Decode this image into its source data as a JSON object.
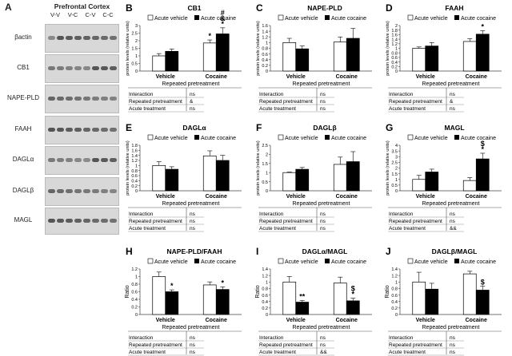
{
  "figure": {
    "panel_a_letter": "A",
    "blot_title": "Prefrontal Cortex",
    "lanes": [
      "V-V",
      "V-C",
      "C-V",
      "C-C"
    ],
    "proteins": [
      "βactin",
      "CB1",
      "NAPE-PLD",
      "FAAH",
      "DAGLα",
      "DAGLβ",
      "MAGL"
    ]
  },
  "chart_data": [
    {
      "letter": "B",
      "type": "bar",
      "title": "CB1",
      "ylabel": "protein levels (relative units)",
      "yticks": [
        "0",
        "0.5",
        "1",
        "1.5",
        "2",
        "2.5",
        "3"
      ],
      "ylim": [
        0,
        3
      ],
      "categories": [
        "Vehicle",
        "Cocaine"
      ],
      "xlabel": "Repeated pretreatment",
      "legend": [
        "Acute vehicle",
        "Acute cocaine"
      ],
      "series": [
        {
          "name": "Acute vehicle",
          "color": "#ffffff",
          "values": [
            1.0,
            1.85
          ],
          "errors": [
            0.15,
            0.2
          ],
          "marks": [
            "",
            "*"
          ]
        },
        {
          "name": "Acute cocaine",
          "color": "#000000",
          "values": [
            1.3,
            2.45
          ],
          "errors": [
            0.15,
            0.4
          ],
          "marks": [
            "",
            "#\n&\n*"
          ]
        }
      ],
      "stats": [
        {
          "label": "Interaction",
          "value": "ns"
        },
        {
          "label": "Repeated pretreatment",
          "value": "&"
        },
        {
          "label": "Acute treatment",
          "value": "ns"
        }
      ]
    },
    {
      "letter": "C",
      "type": "bar",
      "title": "NAPE-PLD",
      "ylabel": "protein levels (relative units)",
      "yticks": [
        "0",
        "0.2",
        "0.4",
        "0.6",
        "0.8",
        "1",
        "1.2",
        "1.4",
        "1.6"
      ],
      "ylim": [
        0,
        1.6
      ],
      "categories": [
        "Vehicle",
        "Cocaine"
      ],
      "xlabel": "Repeated pretreatment",
      "legend": [
        "Acute vehicle",
        "Acute cocaine"
      ],
      "series": [
        {
          "name": "Acute vehicle",
          "color": "#ffffff",
          "values": [
            1.0,
            1.02
          ],
          "errors": [
            0.15,
            0.18
          ],
          "marks": [
            "",
            ""
          ]
        },
        {
          "name": "Acute cocaine",
          "color": "#000000",
          "values": [
            0.78,
            1.15
          ],
          "errors": [
            0.1,
            0.35
          ],
          "marks": [
            "",
            ""
          ]
        }
      ],
      "stats": [
        {
          "label": "Interaction",
          "value": "ns"
        },
        {
          "label": "Repeated pretreatment",
          "value": "ns"
        },
        {
          "label": "Acute treatment",
          "value": "ns"
        }
      ]
    },
    {
      "letter": "D",
      "type": "bar",
      "title": "FAAH",
      "ylabel": "protein levels (relative units)",
      "yticks": [
        "0",
        "0.2",
        "0.4",
        "0.6",
        "0.8",
        "1",
        "1.2",
        "1.4",
        "1.6",
        "1.8",
        "2"
      ],
      "ylim": [
        0,
        2
      ],
      "categories": [
        "Vehicle",
        "Cocaine"
      ],
      "xlabel": "Repeated pretreatment",
      "legend": [
        "Acute vehicle",
        "Acute cocaine"
      ],
      "series": [
        {
          "name": "Acute vehicle",
          "color": "#ffffff",
          "values": [
            1.0,
            1.3
          ],
          "errors": [
            0.06,
            0.12
          ],
          "marks": [
            "",
            ""
          ]
        },
        {
          "name": "Acute cocaine",
          "color": "#000000",
          "values": [
            1.1,
            1.62
          ],
          "errors": [
            0.15,
            0.15
          ],
          "marks": [
            "",
            "*"
          ]
        }
      ],
      "stats": [
        {
          "label": "Interaction",
          "value": "ns"
        },
        {
          "label": "Repeated pretreatment",
          "value": "&"
        },
        {
          "label": "Acute treatment",
          "value": "ns"
        }
      ]
    },
    {
      "letter": "E",
      "type": "bar",
      "title": "DAGLα",
      "ylabel": "protein levels (relative units)",
      "yticks": [
        "0",
        "0.2",
        "0.4",
        "0.6",
        "0.8",
        "1",
        "1.2",
        "1.4",
        "1.6",
        "1.8"
      ],
      "ylim": [
        0,
        1.8
      ],
      "categories": [
        "Vehicle",
        "Cocaine"
      ],
      "xlabel": "Repeated pretreatment",
      "legend": [
        "Acute vehicle",
        "Acute cocaine"
      ],
      "series": [
        {
          "name": "Acute vehicle",
          "color": "#ffffff",
          "values": [
            1.0,
            1.38
          ],
          "errors": [
            0.15,
            0.2
          ],
          "marks": [
            "",
            ""
          ]
        },
        {
          "name": "Acute cocaine",
          "color": "#000000",
          "values": [
            0.85,
            1.2
          ],
          "errors": [
            0.1,
            0.2
          ],
          "marks": [
            "",
            ""
          ]
        }
      ],
      "stats": [
        {
          "label": "Interaction",
          "value": "ns"
        },
        {
          "label": "Repeated pretreatment",
          "value": "ns"
        },
        {
          "label": "Acute treatment",
          "value": "ns"
        }
      ]
    },
    {
      "letter": "F",
      "type": "bar",
      "title": "DAGLβ",
      "ylabel": "protein levels (relative units)",
      "yticks": [
        "0",
        "0.5",
        "1",
        "1.5",
        "2",
        "2.5"
      ],
      "ylim": [
        0,
        2.5
      ],
      "categories": [
        "Vehicle",
        "Cocaine"
      ],
      "xlabel": "Repeated pretreatment",
      "legend": [
        "Acute vehicle",
        "Acute cocaine"
      ],
      "series": [
        {
          "name": "Acute vehicle",
          "color": "#ffffff",
          "values": [
            1.0,
            1.45
          ],
          "errors": [
            0.03,
            0.4
          ],
          "marks": [
            "",
            ""
          ]
        },
        {
          "name": "Acute cocaine",
          "color": "#000000",
          "values": [
            1.18,
            1.6
          ],
          "errors": [
            0.1,
            0.55
          ],
          "marks": [
            "",
            ""
          ]
        }
      ],
      "stats": [
        {
          "label": "Interaction",
          "value": "ns"
        },
        {
          "label": "Repeated pretreatment",
          "value": "ns"
        },
        {
          "label": "Acute treatment",
          "value": "ns"
        }
      ]
    },
    {
      "letter": "G",
      "type": "bar",
      "title": "MAGL",
      "ylabel": "protein levels (relative units)",
      "yticks": [
        "0",
        "0.5",
        "1",
        "1.5",
        "2",
        "2.5",
        "3",
        "3.5",
        "4"
      ],
      "ylim": [
        0,
        4
      ],
      "categories": [
        "Vehicle",
        "Cocaine"
      ],
      "xlabel": "Repeated pretreatment",
      "legend": [
        "Acute vehicle",
        "Acute cocaine"
      ],
      "series": [
        {
          "name": "Acute vehicle",
          "color": "#ffffff",
          "values": [
            1.0,
            0.9
          ],
          "errors": [
            0.35,
            0.25
          ],
          "marks": [
            "",
            ""
          ]
        },
        {
          "name": "Acute cocaine",
          "color": "#000000",
          "values": [
            1.65,
            2.8
          ],
          "errors": [
            0.25,
            0.5
          ],
          "marks": [
            "",
            "$\n*"
          ]
        }
      ],
      "stats": [
        {
          "label": "Interaction",
          "value": "ns"
        },
        {
          "label": "Repeated pretreatment",
          "value": "ns"
        },
        {
          "label": "Acute treatment",
          "value": "&&"
        }
      ]
    },
    {
      "letter": "H",
      "type": "bar",
      "title": "NAPE-PLD/FAAH",
      "ylabel": "Ratio",
      "yticks": [
        "0",
        "0.2",
        "0.4",
        "0.6",
        "0.8",
        "1",
        "1.2"
      ],
      "ylim": [
        0,
        1.2
      ],
      "categories": [
        "Vehicle",
        "Cocaine"
      ],
      "xlabel": "Repeated pretreatment",
      "legend": [
        "Acute vehicle",
        "Acute cocaine"
      ],
      "series": [
        {
          "name": "Acute vehicle",
          "color": "#ffffff",
          "values": [
            1.0,
            0.78
          ],
          "errors": [
            0.12,
            0.08
          ],
          "marks": [
            "",
            ""
          ]
        },
        {
          "name": "Acute cocaine",
          "color": "#000000",
          "values": [
            0.6,
            0.66
          ],
          "errors": [
            0.05,
            0.07
          ],
          "marks": [
            "*",
            "*"
          ]
        }
      ],
      "stats": [
        {
          "label": "Interaction",
          "value": "ns"
        },
        {
          "label": "Repeated pretreatment",
          "value": "ns"
        },
        {
          "label": "Acute treatment",
          "value": "ns"
        }
      ]
    },
    {
      "letter": "I",
      "type": "bar",
      "title": "DAGLα/MAGL",
      "ylabel": "Ratio",
      "yticks": [
        "0",
        "0.2",
        "0.4",
        "0.6",
        "0.8",
        "1",
        "1.2",
        "1.4"
      ],
      "ylim": [
        0,
        1.4
      ],
      "categories": [
        "Vehicle",
        "Cocaine"
      ],
      "xlabel": "Repeated pretreatment",
      "legend": [
        "Acute vehicle",
        "Acute cocaine"
      ],
      "series": [
        {
          "name": "Acute vehicle",
          "color": "#ffffff",
          "values": [
            1.0,
            0.97
          ],
          "errors": [
            0.17,
            0.18
          ],
          "marks": [
            "",
            ""
          ]
        },
        {
          "name": "Acute cocaine",
          "color": "#000000",
          "values": [
            0.38,
            0.42
          ],
          "errors": [
            0.05,
            0.08
          ],
          "marks": [
            "**",
            "$\n*"
          ]
        }
      ],
      "stats": [
        {
          "label": "Interaction",
          "value": "ns"
        },
        {
          "label": "Repeated pretreatment",
          "value": "ns"
        },
        {
          "label": "Acute treatment",
          "value": "&&"
        }
      ]
    },
    {
      "letter": "J",
      "type": "bar",
      "title": "DAGLβ/MAGL",
      "ylabel": "Ratio",
      "yticks": [
        "0",
        "0.2",
        "0.4",
        "0.6",
        "0.8",
        "1",
        "1.2",
        "1.4"
      ],
      "ylim": [
        0,
        1.4
      ],
      "categories": [
        "Vehicle",
        "Cocaine"
      ],
      "xlabel": "Repeated pretreatment",
      "legend": [
        "Acute vehicle",
        "Acute cocaine"
      ],
      "series": [
        {
          "name": "Acute vehicle",
          "color": "#ffffff",
          "values": [
            1.0,
            1.25
          ],
          "errors": [
            0.3,
            0.08
          ],
          "marks": [
            "",
            ""
          ]
        },
        {
          "name": "Acute cocaine",
          "color": "#000000",
          "values": [
            0.78,
            0.75
          ],
          "errors": [
            0.18,
            0.12
          ],
          "marks": [
            "",
            "$"
          ]
        }
      ],
      "stats": [
        {
          "label": "Interaction",
          "value": "ns"
        },
        {
          "label": "Repeated pretreatment",
          "value": "ns"
        },
        {
          "label": "Acute treatment",
          "value": "ns"
        }
      ]
    }
  ]
}
